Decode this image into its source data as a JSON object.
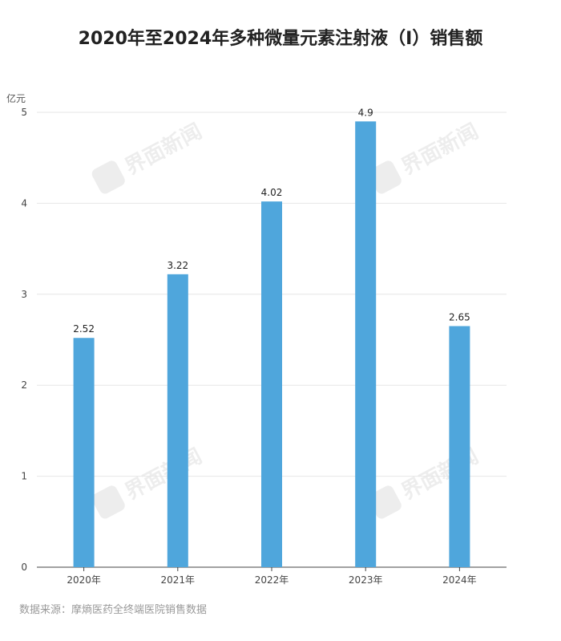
{
  "title": "2020年至2024年多种微量元素注射液（I）销售额",
  "unit_label": "亿元",
  "source": "数据来源：摩熵医药全终端医院销售数据",
  "watermark": "界面新闻",
  "colors": {
    "bar": "#4fa6dc",
    "grid": "#e6e6e6",
    "axis": "#444444"
  },
  "chart_data": {
    "type": "bar",
    "categories": [
      "2020年",
      "2021年",
      "2022年",
      "2023年",
      "2024年"
    ],
    "values": [
      2.52,
      3.22,
      4.02,
      4.9,
      2.65
    ],
    "value_labels": [
      "2.52",
      "3.22",
      "4.02",
      "4.9",
      "2.65"
    ],
    "ylim": [
      0,
      5
    ],
    "yticks": [
      0,
      1,
      2,
      3,
      4,
      5
    ],
    "grid": true,
    "title": "2020年至2024年多种微量元素注射液（I）销售额",
    "ylabel": "亿元",
    "xlabel": ""
  }
}
